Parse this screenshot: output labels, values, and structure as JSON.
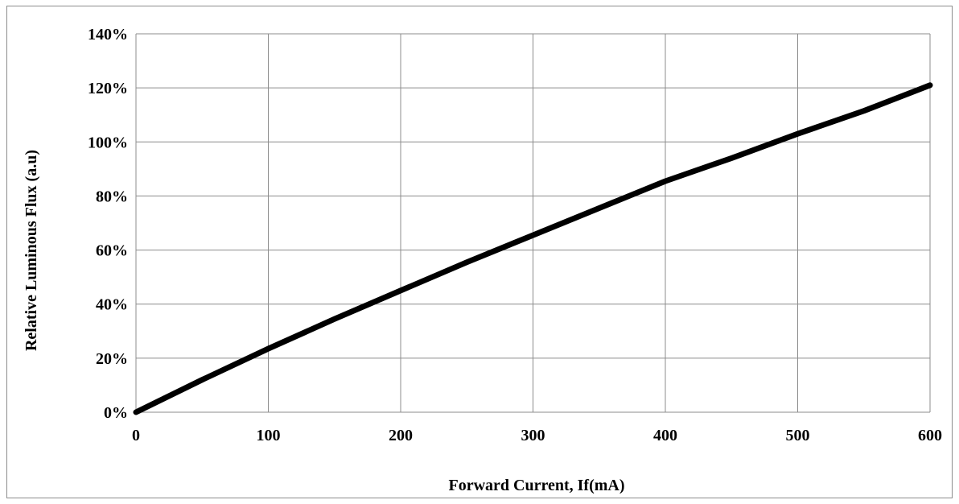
{
  "chart_data": {
    "type": "line",
    "title": "",
    "xlabel": "Forward Current, If(mA)",
    "ylabel": "Relative Luminous Flux (a.u)",
    "xlim": [
      0,
      600
    ],
    "ylim": [
      0,
      140
    ],
    "x_ticks": [
      0,
      100,
      200,
      300,
      400,
      500,
      600
    ],
    "x_tick_labels": [
      "0",
      "100",
      "200",
      "300",
      "400",
      "500",
      "600"
    ],
    "y_ticks": [
      0,
      20,
      40,
      60,
      80,
      100,
      120,
      140
    ],
    "y_tick_labels": [
      "0%",
      "20%",
      "40%",
      "60%",
      "80%",
      "100%",
      "120%",
      "140%"
    ],
    "grid": true,
    "legend": "none",
    "series": [
      {
        "color": "#000000",
        "x": [
          0,
          50,
          100,
          150,
          200,
          250,
          300,
          350,
          400,
          450,
          500,
          550,
          600
        ],
        "y": [
          0,
          12,
          23.5,
          34.5,
          45,
          55.5,
          65.5,
          75.5,
          85.5,
          94,
          103,
          111.5,
          121
        ]
      }
    ]
  }
}
